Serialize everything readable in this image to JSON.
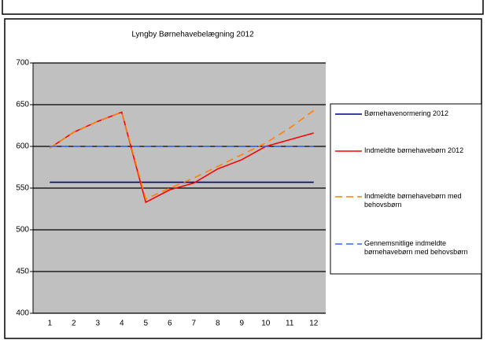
{
  "chart_data": {
    "type": "line",
    "title": "Lyngby Børnehavebelægning 2012",
    "categories": [
      "1",
      "2",
      "3",
      "4",
      "5",
      "6",
      "7",
      "8",
      "9",
      "10",
      "11",
      "12"
    ],
    "series": [
      {
        "name": "Børnehavenormering 2012",
        "color": "#000080",
        "dash": false,
        "values": [
          557,
          557,
          557,
          557,
          557,
          557,
          557,
          557,
          557,
          557,
          557,
          557
        ]
      },
      {
        "name": "Indmeldte børnehavebørn 2012",
        "color": "#ff0000",
        "dash": false,
        "values": [
          598,
          617,
          630,
          641,
          533,
          548,
          556,
          573,
          584,
          600,
          608,
          616
        ]
      },
      {
        "name": "Indmeldte børnehavebørn med behovsbørn",
        "color": "#ff8000",
        "dash": true,
        "values": [
          598,
          617,
          630,
          641,
          537,
          550,
          562,
          576,
          590,
          604,
          622,
          643
        ]
      },
      {
        "name": "Gennemsnitlige indmeldte børnehavebørn med behovsbørn",
        "color": "#3366ff",
        "dash": true,
        "values": [
          600,
          600,
          600,
          600,
          600,
          600,
          600,
          600,
          600,
          600,
          600,
          600
        ]
      }
    ],
    "ylim": [
      400,
      700
    ],
    "yticks": [
      400,
      450,
      500,
      550,
      600,
      650,
      700
    ],
    "grid": true
  }
}
